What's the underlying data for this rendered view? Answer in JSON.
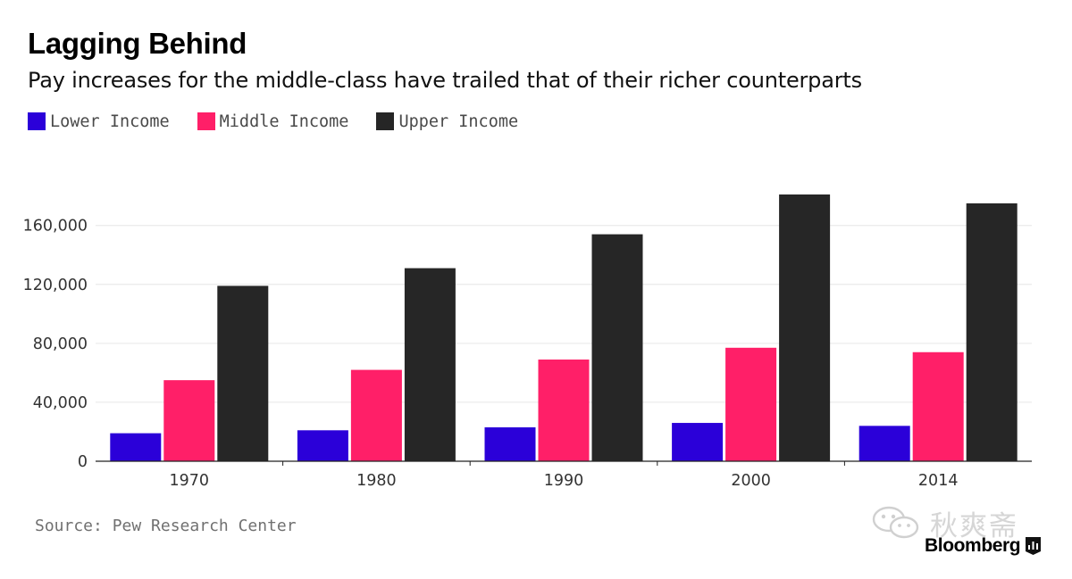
{
  "header": {
    "title": "Lagging Behind",
    "subtitle": "Pay increases for the middle-class have trailed that of their richer counterparts"
  },
  "legend": [
    {
      "label": "Lower Income",
      "color": "#2b00d9"
    },
    {
      "label": "Middle Income",
      "color": "#ff1f68"
    },
    {
      "label": "Upper Income",
      "color": "#262626"
    }
  ],
  "footer": {
    "source": "Source: Pew Research Center",
    "brand": "Bloomberg",
    "watermark": "秋爽斋",
    "brand_icon": "bloomberg-chart-icon",
    "watermark_icon": "wechat-icon"
  },
  "chart_data": {
    "type": "bar",
    "title": "Lagging Behind",
    "subtitle": "Pay increases for the middle-class have trailed that of their richer counterparts",
    "categories": [
      "1970",
      "1980",
      "1990",
      "2000",
      "2014"
    ],
    "series": [
      {
        "name": "Lower Income",
        "color": "#2b00d9",
        "values": [
          19000,
          21000,
          23000,
          26000,
          24000
        ]
      },
      {
        "name": "Middle Income",
        "color": "#ff1f68",
        "values": [
          55000,
          62000,
          69000,
          77000,
          74000
        ]
      },
      {
        "name": "Upper Income",
        "color": "#262626",
        "values": [
          119000,
          131000,
          154000,
          181000,
          175000
        ]
      }
    ],
    "yticks": [
      "0",
      "40,000",
      "80,000",
      "120,000",
      "160,000"
    ],
    "ytick_values": [
      0,
      40000,
      80000,
      120000,
      160000
    ],
    "ylim": [
      0,
      181000
    ],
    "xlabel": "",
    "ylabel": "",
    "grid": true,
    "legend_position": "top-left"
  }
}
